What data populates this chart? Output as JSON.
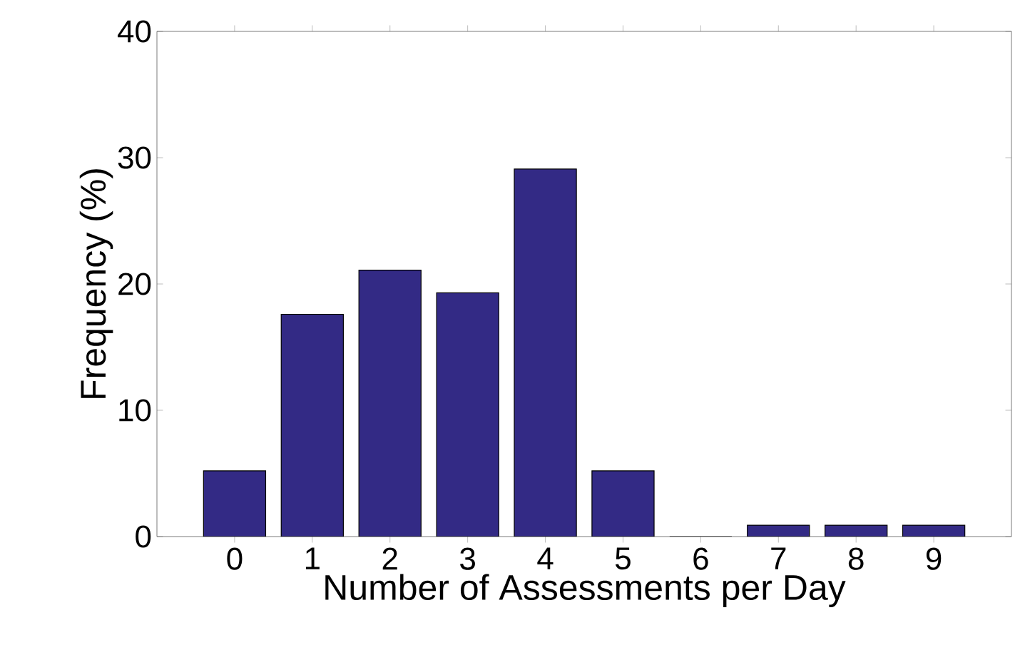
{
  "chart_data": {
    "type": "bar",
    "xlabel": "Number of Assessments per Day",
    "ylabel": "Frequency (%)",
    "categories": [
      "0",
      "1",
      "2",
      "3",
      "4",
      "5",
      "6",
      "7",
      "8",
      "9"
    ],
    "values": [
      5.2,
      17.6,
      21.1,
      19.3,
      29.1,
      5.2,
      0,
      0.9,
      0.9,
      0.9
    ],
    "color": "#332a85",
    "ylim": [
      0,
      40
    ],
    "yticks": [
      0,
      10,
      20,
      30,
      40
    ],
    "grid": false
  }
}
